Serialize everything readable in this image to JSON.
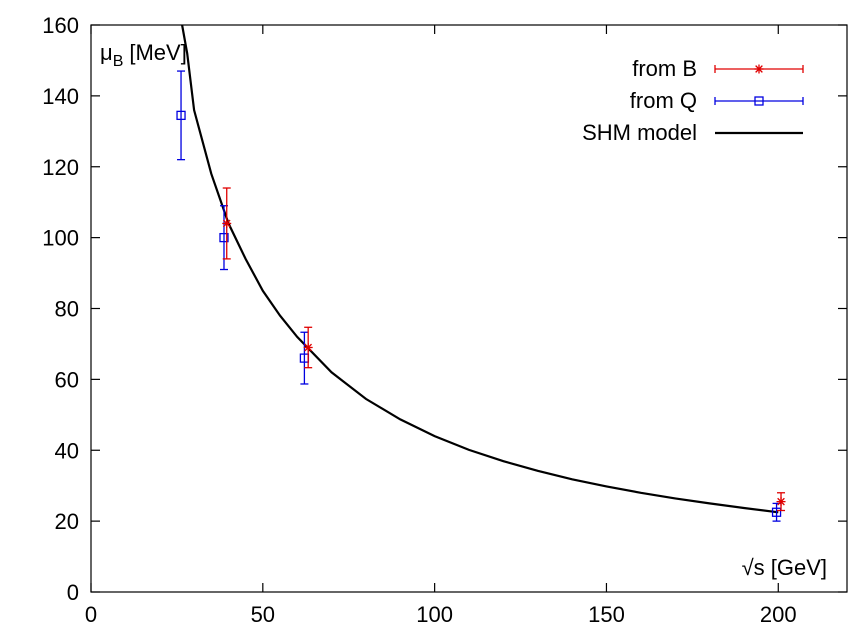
{
  "chart_data": {
    "type": "scatter",
    "xlim": [
      0,
      220
    ],
    "ylim": [
      0,
      160
    ],
    "x_ticks": [
      0,
      50,
      100,
      150,
      200
    ],
    "y_ticks": [
      0,
      20,
      40,
      60,
      80,
      100,
      120,
      140,
      160
    ],
    "xlabel": "√s [GeV]",
    "ylabel_main": "μ",
    "ylabel_sub": "B",
    "ylabel_unit": "[MeV]",
    "grid": false,
    "legend_position": "top-right",
    "series": [
      {
        "name": "from B",
        "kind": "points-errorbars",
        "marker": "asterisk",
        "color": "#e00000",
        "points": [
          {
            "x": 39.5,
            "y": 104,
            "yerr": 10
          },
          {
            "x": 63.2,
            "y": 69,
            "yerr": 5.7
          },
          {
            "x": 200.8,
            "y": 25.5,
            "yerr": 2.5
          }
        ]
      },
      {
        "name": "from Q",
        "kind": "points-errorbars",
        "marker": "square",
        "color": "#0000e0",
        "points": [
          {
            "x": 26.2,
            "y": 134.5,
            "yerr": 12.5
          },
          {
            "x": 38.7,
            "y": 100,
            "yerr": 9
          },
          {
            "x": 62.1,
            "y": 66,
            "yerr": 7.3
          },
          {
            "x": 199.5,
            "y": 22.5,
            "yerr": 2.5
          }
        ]
      },
      {
        "name": "SHM model",
        "kind": "line",
        "color": "#000000",
        "points": [
          {
            "x": 26.5,
            "y": 160
          },
          {
            "x": 28,
            "y": 152
          },
          {
            "x": 30,
            "y": 136
          },
          {
            "x": 35,
            "y": 118
          },
          {
            "x": 40,
            "y": 104
          },
          {
            "x": 45,
            "y": 94
          },
          {
            "x": 50,
            "y": 85
          },
          {
            "x": 55,
            "y": 78
          },
          {
            "x": 60,
            "y": 72
          },
          {
            "x": 70,
            "y": 62
          },
          {
            "x": 80,
            "y": 54.5
          },
          {
            "x": 90,
            "y": 48.7
          },
          {
            "x": 100,
            "y": 44
          },
          {
            "x": 110,
            "y": 40.1
          },
          {
            "x": 120,
            "y": 36.9
          },
          {
            "x": 130,
            "y": 34.2
          },
          {
            "x": 140,
            "y": 31.8
          },
          {
            "x": 150,
            "y": 29.8
          },
          {
            "x": 160,
            "y": 28
          },
          {
            "x": 170,
            "y": 26.4
          },
          {
            "x": 180,
            "y": 25
          },
          {
            "x": 190,
            "y": 23.7
          },
          {
            "x": 200,
            "y": 22.5
          }
        ]
      }
    ]
  }
}
